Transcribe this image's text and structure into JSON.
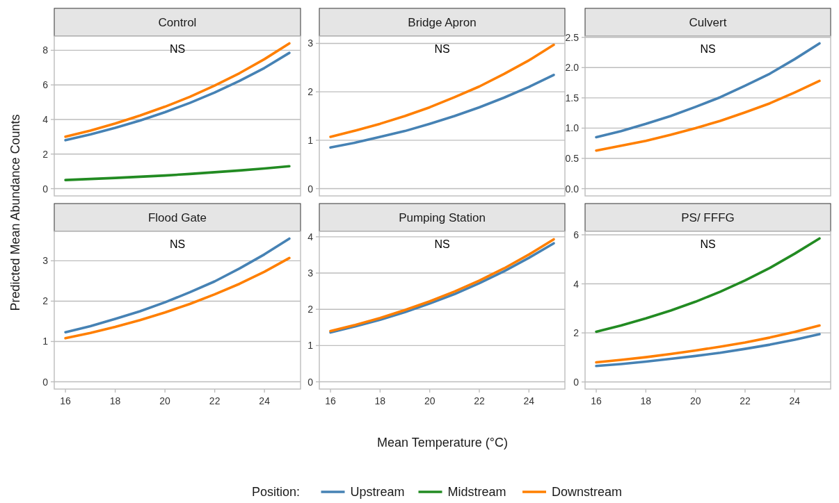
{
  "chart_data": [
    {
      "type": "line",
      "title": "Control",
      "legend": "bottom",
      "legend_title": "Position:",
      "ylabel": "Predicted Mean Abundance Counts",
      "annotations": [
        "NS"
      ],
      "x": [
        16,
        17,
        18,
        19,
        20,
        21,
        22,
        23,
        24,
        25
      ],
      "xlim": [
        15.55,
        25.45
      ],
      "xticks": [
        16,
        18,
        20,
        22,
        24
      ],
      "ylim": [
        -0.42,
        8.82
      ],
      "yticks": [
        0,
        2,
        4,
        6,
        8
      ],
      "grid": "y",
      "tick_labels": "y",
      "series": [
        {
          "name": "Upstream",
          "color": "#4682b4",
          "values": [
            2.8,
            3.14,
            3.52,
            3.94,
            4.42,
            4.96,
            5.56,
            6.23,
            6.98,
            7.85
          ]
        },
        {
          "name": "Midstream",
          "color": "#228b22",
          "values": [
            0.5,
            0.56,
            0.62,
            0.69,
            0.76,
            0.85,
            0.95,
            1.05,
            1.17,
            1.3
          ]
        },
        {
          "name": "Downstream",
          "color": "#ff7f00",
          "values": [
            3.0,
            3.36,
            3.77,
            4.23,
            4.74,
            5.31,
            5.96,
            6.68,
            7.49,
            8.4
          ]
        }
      ]
    },
    {
      "type": "line",
      "title": "Bridge Apron",
      "annotations": [
        "NS"
      ],
      "x": [
        16,
        17,
        18,
        19,
        20,
        21,
        22,
        23,
        24,
        25
      ],
      "xlim": [
        15.55,
        25.45
      ],
      "xticks": [
        16,
        18,
        20,
        22,
        24
      ],
      "ylim": [
        -0.15,
        3.15
      ],
      "yticks": [
        0,
        1,
        2,
        3
      ],
      "grid": "y",
      "tick_labels": "y",
      "series": [
        {
          "name": "Upstream",
          "color": "#4682b4",
          "values": [
            0.85,
            0.95,
            1.07,
            1.19,
            1.34,
            1.5,
            1.68,
            1.88,
            2.1,
            2.35
          ]
        },
        {
          "name": "Downstream",
          "color": "#ff7f00",
          "values": [
            1.07,
            1.2,
            1.34,
            1.5,
            1.68,
            1.89,
            2.11,
            2.37,
            2.65,
            2.97
          ]
        }
      ]
    },
    {
      "type": "line",
      "title": "Culvert",
      "annotations": [
        "NS"
      ],
      "x": [
        16,
        17,
        18,
        19,
        20,
        21,
        22,
        23,
        24,
        25
      ],
      "xlim": [
        15.55,
        25.45
      ],
      "xticks": [
        16,
        18,
        20,
        22,
        24
      ],
      "ylim": [
        -0.12,
        2.52
      ],
      "yticks": [
        {
          "value": 0,
          "label": "0.0"
        },
        {
          "value": 0.5,
          "label": "0.5"
        },
        {
          "value": 1,
          "label": "1.0"
        },
        {
          "value": 1.5,
          "label": "1.5"
        },
        {
          "value": 2,
          "label": "2.0"
        },
        {
          "value": 2.5,
          "label": "2.5"
        }
      ],
      "grid": "y",
      "tick_labels": "y",
      "series": [
        {
          "name": "Upstream",
          "color": "#4682b4",
          "values": [
            0.85,
            0.95,
            1.07,
            1.2,
            1.35,
            1.51,
            1.7,
            1.9,
            2.14,
            2.4
          ]
        },
        {
          "name": "Downstream",
          "color": "#ff7f00",
          "values": [
            0.63,
            0.71,
            0.79,
            0.89,
            1.0,
            1.12,
            1.26,
            1.41,
            1.59,
            1.78
          ]
        }
      ]
    },
    {
      "type": "line",
      "title": "Flood Gate",
      "annotations": [
        "NS"
      ],
      "x": [
        16,
        17,
        18,
        19,
        20,
        21,
        22,
        23,
        24,
        25
      ],
      "xlim": [
        15.55,
        25.45
      ],
      "xticks": [
        16,
        18,
        20,
        22,
        24
      ],
      "ylim": [
        -0.18,
        3.73
      ],
      "yticks": [
        0,
        1,
        2,
        3
      ],
      "grid": "y",
      "series": [
        {
          "name": "Upstream",
          "color": "#4682b4",
          "values": [
            1.23,
            1.38,
            1.56,
            1.75,
            1.97,
            2.22,
            2.49,
            2.81,
            3.16,
            3.55
          ]
        },
        {
          "name": "Downstream",
          "color": "#ff7f00",
          "values": [
            1.08,
            1.21,
            1.36,
            1.53,
            1.72,
            1.93,
            2.17,
            2.43,
            2.73,
            3.07
          ]
        }
      ]
    },
    {
      "type": "line",
      "title": "Pumping Station",
      "xlabel": "Mean Temperature (°C)",
      "annotations": [
        "NS"
      ],
      "x": [
        16,
        17,
        18,
        19,
        20,
        21,
        22,
        23,
        24,
        25
      ],
      "xlim": [
        15.55,
        25.45
      ],
      "xticks": [
        16,
        18,
        20,
        22,
        24
      ],
      "ylim": [
        -0.2,
        4.15
      ],
      "yticks": [
        0,
        1,
        2,
        3,
        4
      ],
      "grid": "y",
      "series": [
        {
          "name": "Upstream",
          "color": "#4682b4",
          "values": [
            1.36,
            1.53,
            1.71,
            1.92,
            2.16,
            2.42,
            2.72,
            3.05,
            3.42,
            3.82
          ]
        },
        {
          "name": "Downstream",
          "color": "#ff7f00",
          "values": [
            1.4,
            1.57,
            1.76,
            1.98,
            2.22,
            2.49,
            2.79,
            3.13,
            3.51,
            3.93
          ]
        }
      ]
    },
    {
      "type": "line",
      "title": "PS/ FFFG",
      "annotations": [
        "NS"
      ],
      "x": [
        16,
        17,
        18,
        19,
        20,
        21,
        22,
        23,
        24,
        25
      ],
      "xlim": [
        15.55,
        25.45
      ],
      "xticks": [
        16,
        18,
        20,
        22,
        24
      ],
      "ylim": [
        -0.29,
        6.14
      ],
      "yticks": [
        0,
        2,
        4,
        6
      ],
      "grid": "y",
      "series": [
        {
          "name": "Upstream",
          "color": "#4682b4",
          "values": [
            0.65,
            0.73,
            0.83,
            0.94,
            1.06,
            1.19,
            1.35,
            1.52,
            1.72,
            1.95
          ]
        },
        {
          "name": "Midstream",
          "color": "#228b22",
          "values": [
            2.05,
            2.3,
            2.59,
            2.91,
            3.27,
            3.68,
            4.14,
            4.65,
            5.23,
            5.85
          ]
        },
        {
          "name": "Downstream",
          "color": "#ff7f00",
          "values": [
            0.8,
            0.9,
            1.01,
            1.14,
            1.28,
            1.44,
            1.61,
            1.81,
            2.04,
            2.3
          ]
        }
      ]
    }
  ]
}
